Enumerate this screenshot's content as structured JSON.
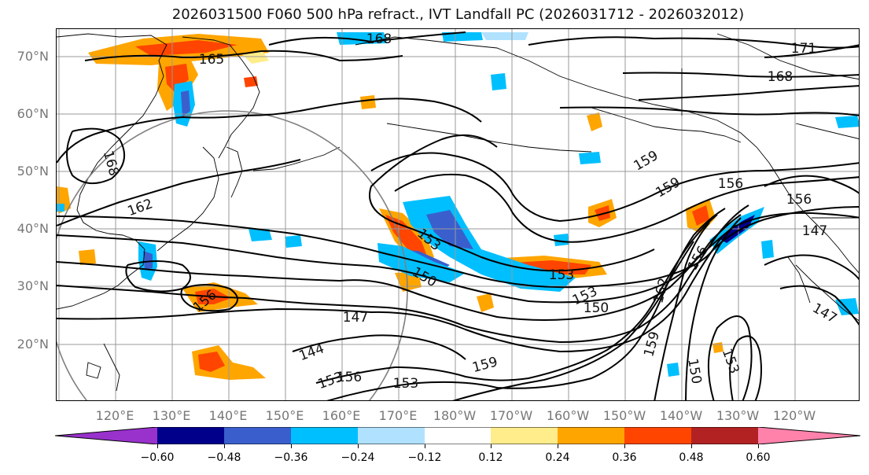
{
  "title": "2026031500 F060 500 hPa refract., IVT Landfall PC (2026031712 - 2026032012)",
  "lat_labels": [
    "70°N",
    "60°N",
    "50°N",
    "40°N",
    "30°N",
    "20°N"
  ],
  "lon_labels": [
    "120°E",
    "130°E",
    "140°E",
    "150°E",
    "160°E",
    "170°E",
    "180°W",
    "170°W",
    "160°W",
    "150°W",
    "140°W",
    "130°W",
    "120°W"
  ],
  "contour_labels": [
    "168",
    "165",
    "171",
    "168",
    "168",
    "162",
    "159",
    "159",
    "156",
    "156",
    "153",
    "150",
    "153",
    "153",
    "150",
    "147",
    "156",
    "144",
    "153",
    "156",
    "159",
    "153",
    "162",
    "159",
    "150",
    "153",
    "147",
    "147",
    "156"
  ],
  "colorbar": {
    "colors": [
      "#9932cc",
      "#00008b",
      "#3a5fcd",
      "#00bfff",
      "#b0e2ff",
      "#ffffff",
      "#ffec8b",
      "#ffa500",
      "#ff4500",
      "#b22222",
      "#ff82ab"
    ],
    "tick_labels": [
      "−0.60",
      "−0.48",
      "−0.36",
      "−0.24",
      "−0.12",
      "0.12",
      "0.24",
      "0.36",
      "0.48",
      "0.60"
    ]
  }
}
